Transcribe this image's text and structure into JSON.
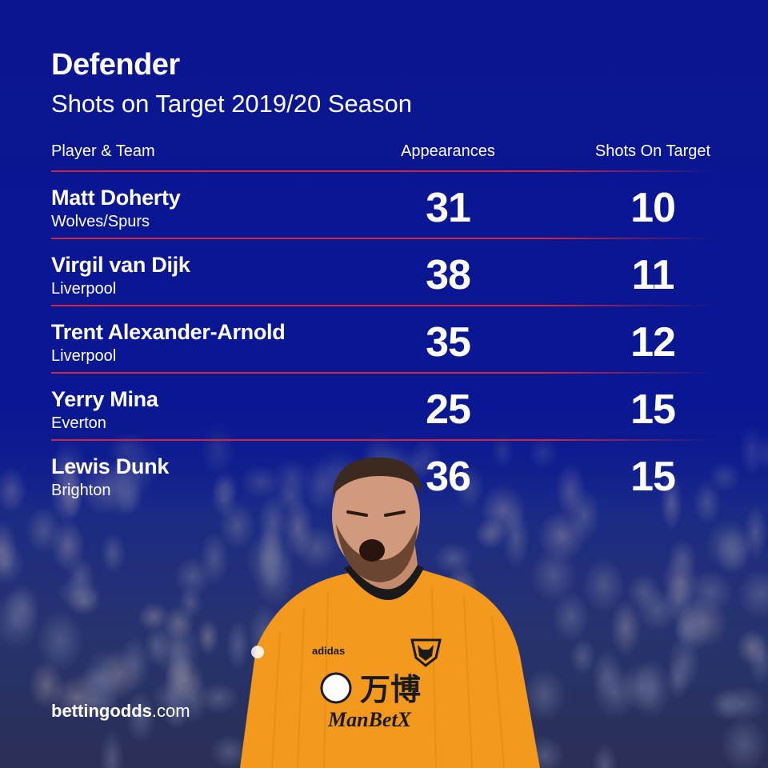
{
  "header": {
    "title": "Defender",
    "subtitle": "Shots on Target 2019/20 Season"
  },
  "table": {
    "columns": [
      "Player & Team",
      "Appearances",
      "Shots On Target"
    ],
    "rows": [
      {
        "player": "Matt Doherty",
        "team": "Wolves/Spurs",
        "appearances": "31",
        "shots_on_target": "10"
      },
      {
        "player": "Virgil van Dijk",
        "team": "Liverpool",
        "appearances": "38",
        "shots_on_target": "11"
      },
      {
        "player": "Trent Alexander-Arnold",
        "team": "Liverpool",
        "appearances": "35",
        "shots_on_target": "12"
      },
      {
        "player": "Yerry Mina",
        "team": "Everton",
        "appearances": "25",
        "shots_on_target": "15"
      },
      {
        "player": "Lewis Dunk",
        "team": "Brighton",
        "appearances": "36",
        "shots_on_target": "15"
      }
    ]
  },
  "brand": {
    "logo_bold": "bettingodds",
    "logo_light": ".com"
  },
  "colors": {
    "background": "#0a1793",
    "divider": "#d4243a",
    "text": "#ffffff",
    "kit": "#f39a1e"
  },
  "photo": {
    "jersey_sponsor_cn": "万博",
    "jersey_sponsor": "ManBetX",
    "kit_maker": "adidas"
  }
}
